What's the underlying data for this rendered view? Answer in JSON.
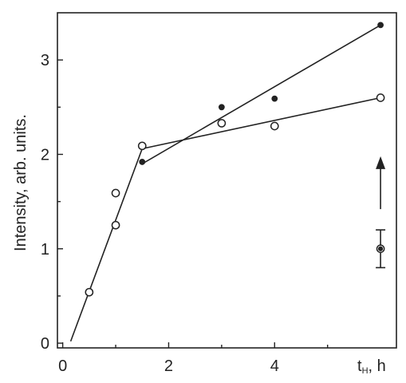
{
  "chart_data": {
    "type": "scatter",
    "title": "",
    "ylabel": "Intensity, arb. units.",
    "xlabel_main": "t",
    "xlabel_sub": "H",
    "xlabel_unit": ", h",
    "xlim": [
      -0.1,
      6.3
    ],
    "ylim": [
      -0.05,
      3.5
    ],
    "x_ticks": [
      "0",
      "2",
      "4"
    ],
    "y_ticks": [
      "0",
      "1",
      "2",
      "3"
    ],
    "grid": false,
    "series": [
      {
        "marker": "open-circle",
        "points": [
          [
            0.5,
            0.54
          ],
          [
            1.0,
            1.25
          ],
          [
            1.0,
            1.59
          ],
          [
            1.5,
            2.09
          ],
          [
            3.0,
            2.33
          ],
          [
            4.0,
            2.3
          ],
          [
            6.0,
            2.6
          ]
        ]
      },
      {
        "marker": "filled-circle",
        "points": [
          [
            1.5,
            1.92
          ],
          [
            3.0,
            2.5
          ],
          [
            4.0,
            2.59
          ],
          [
            6.0,
            3.37
          ]
        ]
      }
    ],
    "fit_lines": [
      {
        "points": [
          [
            0.15,
            0.02
          ],
          [
            1.5,
            2.06
          ]
        ]
      },
      {
        "points": [
          [
            1.5,
            2.06
          ],
          [
            6.0,
            2.6
          ]
        ]
      },
      {
        "points": [
          [
            1.5,
            1.9
          ],
          [
            6.0,
            3.37
          ]
        ]
      }
    ],
    "error_bar": {
      "x": 6.0,
      "y": 1.0,
      "low": 0.8,
      "high": 1.2
    },
    "arrow": {
      "x": 6.0,
      "from": 1.42,
      "to": 1.98
    }
  }
}
